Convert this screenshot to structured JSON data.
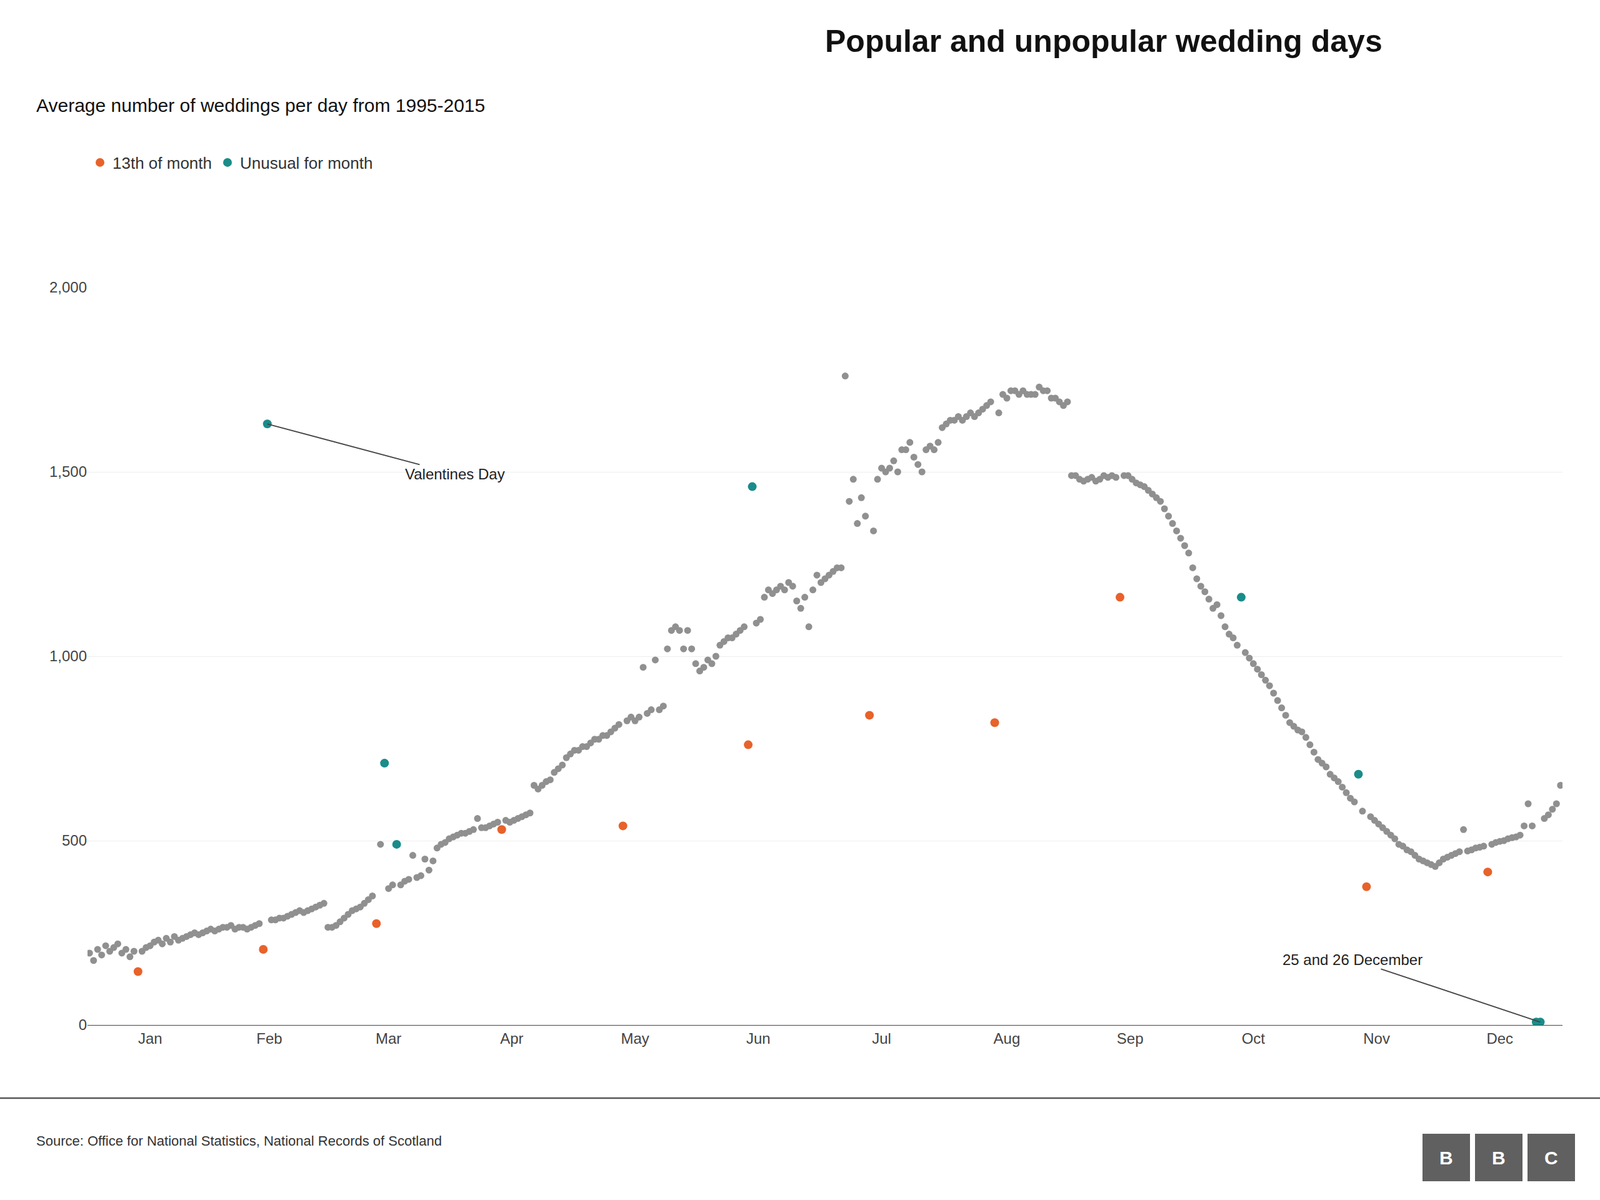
{
  "chart_data": {
    "type": "scatter",
    "title": "Popular and unpopular wedding days",
    "subtitle": "Average number of weddings per day from 1995-2015",
    "source": "Source: Office for National Statistics, National Records of Scotland",
    "logo": "BBC",
    "marker": "circle",
    "grid": true,
    "legend": "top left",
    "xlim": [
      0,
      365
    ],
    "xticks": [
      {
        "value": 15.5,
        "label": "Jan"
      },
      {
        "value": 45,
        "label": "Feb"
      },
      {
        "value": 74.5,
        "label": "Mar"
      },
      {
        "value": 105,
        "label": "Apr"
      },
      {
        "value": 135.5,
        "label": "May"
      },
      {
        "value": 166,
        "label": "Jun"
      },
      {
        "value": 196.5,
        "label": "Jul"
      },
      {
        "value": 227.5,
        "label": "Aug"
      },
      {
        "value": 258,
        "label": "Sep"
      },
      {
        "value": 288.5,
        "label": "Oct"
      },
      {
        "value": 319,
        "label": "Nov"
      },
      {
        "value": 349.5,
        "label": "Dec"
      }
    ],
    "ylim": [
      0,
      2000
    ],
    "yticks": [
      0,
      500,
      {
        "value": 1000,
        "label": "1,000"
      },
      {
        "value": 1500,
        "label": "1,500"
      },
      {
        "value": 2000,
        "label": "2,000"
      }
    ],
    "series": [
      {
        "color": "#909090",
        "x": [
          0.5,
          1.5,
          2.5,
          3.5,
          4.5,
          5.5,
          6.5,
          7.5,
          8.5,
          9.5,
          10.5,
          11.5,
          13.5,
          14.5,
          15.5,
          16.5,
          17.5,
          18.5,
          19.5,
          20.5,
          21.5,
          22.5,
          23.5,
          24.5,
          25.5,
          26.5,
          27.5,
          28.5,
          29.5,
          30.5,
          31.5,
          32.5,
          33.5,
          34.5,
          35.5,
          36.5,
          37.5,
          38.5,
          39.5,
          40.5,
          41.5,
          42.5,
          45.5,
          46.5,
          47.5,
          48.5,
          49.5,
          50.5,
          51.5,
          52.5,
          53.5,
          54.5,
          55.5,
          56.5,
          57.5,
          58.5,
          59.5,
          60.5,
          61.5,
          62.5,
          63.5,
          64.5,
          65.5,
          66.5,
          67.5,
          68.5,
          69.5,
          70.5,
          72.5,
          74.5,
          75.5,
          77.5,
          78.5,
          79.5,
          80.5,
          81.5,
          82.5,
          83.5,
          84.5,
          85.5,
          86.5,
          87.5,
          88.5,
          89.5,
          90.5,
          91.5,
          92.5,
          93.5,
          94.5,
          95.5,
          96.5,
          97.5,
          98.5,
          99.5,
          100.5,
          101.5,
          103.5,
          104.5,
          105.5,
          106.5,
          107.5,
          108.5,
          109.5,
          110.5,
          111.5,
          112.5,
          113.5,
          114.5,
          115.5,
          116.5,
          117.5,
          118.5,
          119.5,
          120.5,
          121.5,
          122.5,
          123.5,
          124.5,
          125.5,
          126.5,
          127.5,
          128.5,
          129.5,
          130.5,
          131.5,
          133.5,
          134.5,
          135.5,
          136.5,
          137.5,
          138.5,
          139.5,
          140.5,
          141.5,
          142.5,
          143.5,
          144.5,
          145.5,
          146.5,
          147.5,
          148.5,
          149.5,
          150.5,
          151.5,
          152.5,
          153.5,
          154.5,
          155.5,
          156.5,
          157.5,
          158.5,
          159.5,
          160.5,
          161.5,
          162.5,
          165.5,
          166.5,
          167.5,
          168.5,
          169.5,
          170.5,
          171.5,
          172.5,
          173.5,
          174.5,
          175.5,
          176.5,
          177.5,
          178.5,
          179.5,
          180.5,
          181.5,
          182.5,
          183.5,
          184.5,
          185.5,
          186.5,
          187.5,
          188.5,
          189.5,
          190.5,
          191.5,
          192.5,
          194.5,
          195.5,
          196.5,
          197.5,
          198.5,
          199.5,
          200.5,
          201.5,
          202.5,
          203.5,
          204.5,
          205.5,
          206.5,
          207.5,
          208.5,
          209.5,
          210.5,
          211.5,
          212.5,
          213.5,
          214.5,
          215.5,
          216.5,
          217.5,
          218.5,
          219.5,
          220.5,
          221.5,
          222.5,
          223.5,
          225.5,
          226.5,
          227.5,
          228.5,
          229.5,
          230.5,
          231.5,
          232.5,
          233.5,
          234.5,
          235.5,
          236.5,
          237.5,
          238.5,
          239.5,
          240.5,
          241.5,
          242.5,
          243.5,
          244.5,
          245.5,
          246.5,
          247.5,
          248.5,
          249.5,
          250.5,
          251.5,
          252.5,
          253.5,
          254.5,
          256.5,
          257.5,
          258.5,
          259.5,
          260.5,
          261.5,
          262.5,
          263.5,
          264.5,
          265.5,
          266.5,
          267.5,
          268.5,
          269.5,
          270.5,
          271.5,
          272.5,
          273.5,
          274.5,
          275.5,
          276.5,
          277.5,
          278.5,
          279.5,
          280.5,
          281.5,
          282.5,
          283.5,
          284.5,
          286.5,
          287.5,
          288.5,
          289.5,
          290.5,
          291.5,
          292.5,
          293.5,
          294.5,
          295.5,
          296.5,
          297.5,
          298.5,
          299.5,
          300.5,
          301.5,
          302.5,
          303.5,
          304.5,
          305.5,
          306.5,
          307.5,
          308.5,
          309.5,
          310.5,
          311.5,
          312.5,
          313.5,
          315.5,
          317.5,
          318.5,
          319.5,
          320.5,
          321.5,
          322.5,
          323.5,
          324.5,
          325.5,
          326.5,
          327.5,
          328.5,
          329.5,
          330.5,
          331.5,
          332.5,
          333.5,
          334.5,
          335.5,
          336.5,
          337.5,
          338.5,
          339.5,
          340.5,
          341.5,
          342.5,
          343.5,
          344.5,
          345.5,
          347.5,
          348.5,
          349.5,
          350.5,
          351.5,
          352.5,
          353.5,
          354.5,
          355.5,
          356.5,
          357.5,
          360.5,
          361.5,
          362.5,
          363.5,
          364.5
        ],
        "values": [
          195,
          175,
          205,
          190,
          215,
          200,
          210,
          220,
          195,
          205,
          185,
          200,
          200,
          210,
          215,
          225,
          230,
          220,
          235,
          225,
          240,
          230,
          235,
          240,
          245,
          250,
          245,
          250,
          255,
          260,
          255,
          260,
          265,
          265,
          270,
          260,
          265,
          265,
          260,
          265,
          270,
          275,
          285,
          285,
          290,
          290,
          295,
          300,
          305,
          310,
          305,
          310,
          315,
          320,
          325,
          330,
          265,
          265,
          270,
          280,
          290,
          300,
          310,
          315,
          320,
          330,
          340,
          350,
          490,
          370,
          380,
          380,
          390,
          395,
          460,
          400,
          405,
          450,
          420,
          445,
          480,
          490,
          495,
          505,
          510,
          515,
          520,
          520,
          525,
          530,
          560,
          535,
          535,
          540,
          545,
          550,
          555,
          550,
          555,
          560,
          565,
          570,
          575,
          650,
          640,
          650,
          660,
          665,
          685,
          695,
          705,
          725,
          735,
          745,
          745,
          755,
          755,
          765,
          775,
          775,
          785,
          785,
          795,
          805,
          815,
          825,
          835,
          825,
          835,
          970,
          845,
          855,
          990,
          855,
          865,
          1020,
          1070,
          1080,
          1070,
          1020,
          1070,
          1020,
          980,
          960,
          970,
          990,
          980,
          1000,
          1030,
          1040,
          1050,
          1050,
          1060,
          1070,
          1080,
          1090,
          1100,
          1160,
          1180,
          1170,
          1180,
          1190,
          1180,
          1200,
          1190,
          1150,
          1130,
          1160,
          1080,
          1180,
          1220,
          1200,
          1210,
          1220,
          1230,
          1240,
          1240,
          1760,
          1420,
          1480,
          1360,
          1430,
          1380,
          1340,
          1480,
          1510,
          1500,
          1510,
          1530,
          1500,
          1560,
          1560,
          1580,
          1540,
          1520,
          1500,
          1560,
          1570,
          1560,
          1580,
          1620,
          1630,
          1640,
          1640,
          1650,
          1640,
          1650,
          1660,
          1650,
          1660,
          1670,
          1680,
          1690,
          1660,
          1710,
          1700,
          1720,
          1720,
          1710,
          1720,
          1710,
          1710,
          1710,
          1730,
          1720,
          1720,
          1700,
          1700,
          1690,
          1680,
          1690,
          1490,
          1490,
          1480,
          1475,
          1480,
          1485,
          1475,
          1480,
          1490,
          1485,
          1490,
          1485,
          1490,
          1490,
          1480,
          1470,
          1465,
          1460,
          1450,
          1440,
          1430,
          1420,
          1400,
          1380,
          1360,
          1340,
          1320,
          1300,
          1280,
          1240,
          1210,
          1190,
          1175,
          1155,
          1130,
          1140,
          1110,
          1080,
          1060,
          1050,
          1030,
          1010,
          995,
          980,
          965,
          950,
          935,
          920,
          900,
          880,
          860,
          840,
          820,
          810,
          800,
          795,
          780,
          760,
          740,
          720,
          710,
          700,
          680,
          670,
          660,
          645,
          630,
          615,
          605,
          580,
          565,
          555,
          545,
          535,
          525,
          515,
          505,
          490,
          485,
          475,
          470,
          460,
          450,
          445,
          440,
          435,
          430,
          440,
          450,
          455,
          460,
          465,
          470,
          530,
          472,
          475,
          480,
          482,
          485,
          490,
          495,
          498,
          500,
          505,
          508,
          510,
          515,
          540,
          600,
          540,
          560,
          570,
          585,
          600,
          650
        ]
      },
      {
        "name": "13th of month",
        "color": "#E8622A",
        "x": [
          12.5,
          43.5,
          71.5,
          102.5,
          132.5,
          163.5,
          193.5,
          224.5,
          255.5,
          316.5,
          346.5
        ],
        "values": [
          145,
          205,
          275,
          530,
          540,
          760,
          840,
          820,
          1160,
          375,
          415
        ]
      },
      {
        "name": "Unusual for month",
        "color": "#1A8C8A",
        "x": [
          44.5,
          73.5,
          76.5,
          164.5,
          285.5,
          314.5,
          358.5,
          359.5
        ],
        "values": [
          1630,
          710,
          490,
          1460,
          1160,
          680,
          8,
          8
        ]
      }
    ],
    "annotations": [
      {
        "text": "Valentines Day",
        "x": 44.5,
        "y": 1630
      },
      {
        "text": "25 and 26 December",
        "x": 359.5,
        "y": 8
      }
    ]
  }
}
